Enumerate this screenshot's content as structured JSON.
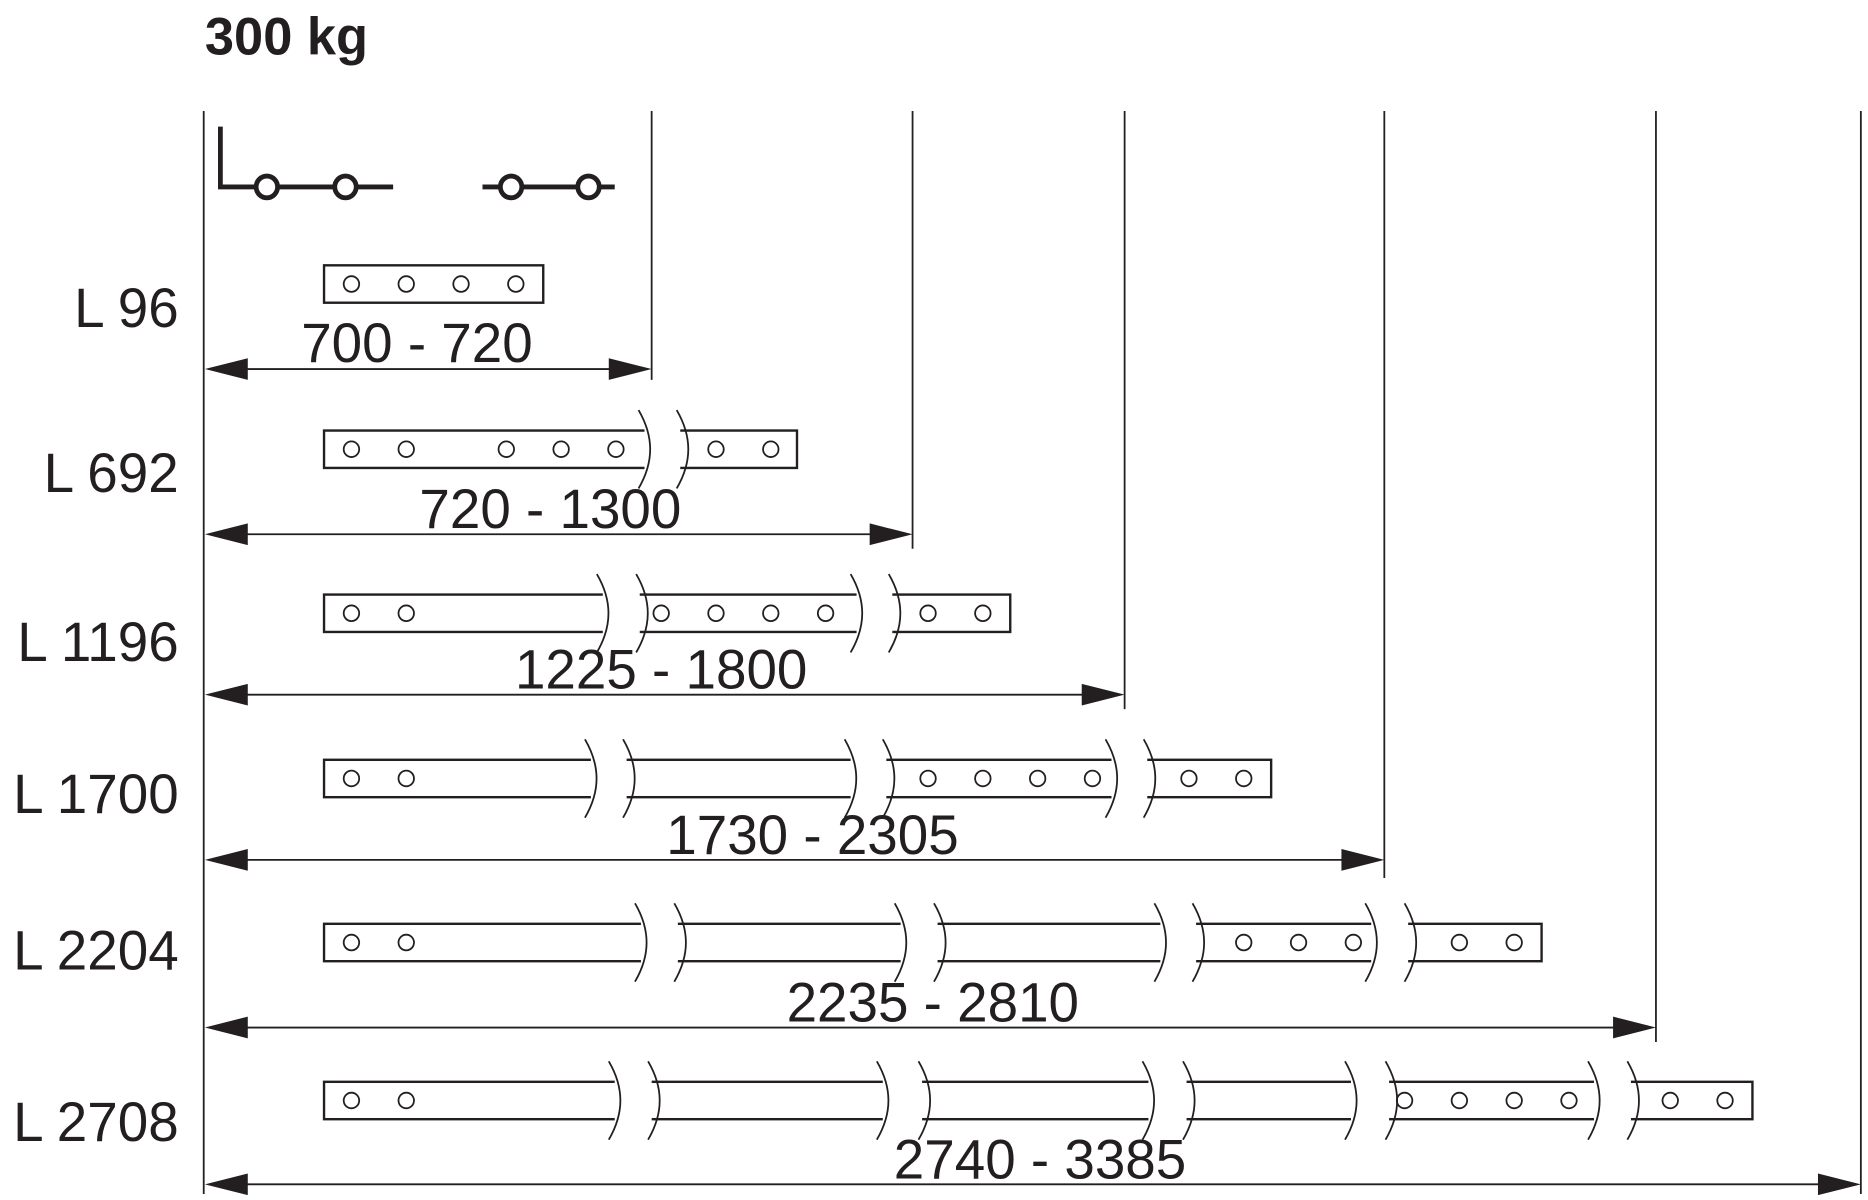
{
  "title": "300 kg",
  "rows": [
    {
      "label": "L 96",
      "range": "700 - 720"
    },
    {
      "label": "L 692",
      "range": "720 - 1300"
    },
    {
      "label": "L 1196",
      "range": "1225 - 1800"
    },
    {
      "label": "L 1700",
      "range": "1730 - 2305"
    },
    {
      "label": "L 2204",
      "range": "2235 - 2810"
    },
    {
      "label": "L 2708",
      "range": "2740 - 3385"
    }
  ],
  "colors": {
    "ink": "#231f20",
    "background": "#ffffff"
  },
  "icons": [
    "slide-rail-symbol-icon"
  ]
}
